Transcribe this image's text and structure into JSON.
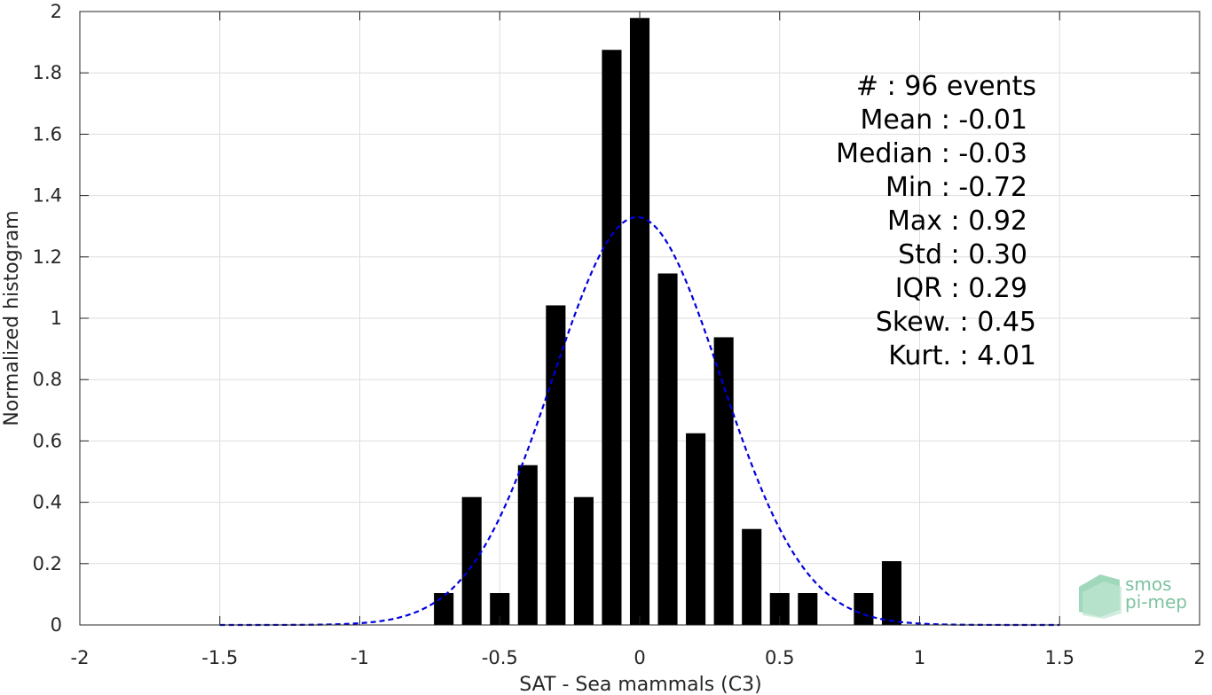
{
  "chart_data": {
    "type": "bar",
    "xlabel": "SAT - Sea mammals (C3)",
    "ylabel": "Normalized histogram",
    "xlim": [
      -2,
      2
    ],
    "ylim": [
      0,
      2
    ],
    "xticks": [
      -2,
      -1.5,
      -1,
      -0.5,
      0,
      0.5,
      1,
      1.5,
      2
    ],
    "xtick_labels": [
      "-2",
      "-1.5",
      "-1",
      "-0.5",
      "0",
      "0.5",
      "1",
      "1.5",
      "2"
    ],
    "yticks": [
      0,
      0.2,
      0.4,
      0.6,
      0.8,
      1,
      1.2,
      1.4,
      1.6,
      1.8,
      2
    ],
    "ytick_labels": [
      "0",
      "0.2",
      "0.4",
      "0.6",
      "0.8",
      "1",
      "1.2",
      "1.4",
      "1.6",
      "1.8",
      "2"
    ],
    "grid": true,
    "bin_width": 0.1,
    "bar_width": 0.07,
    "bar_color": "#000000",
    "bins": [
      {
        "x": -0.7,
        "value": 0.104
      },
      {
        "x": -0.6,
        "value": 0.417
      },
      {
        "x": -0.5,
        "value": 0.104
      },
      {
        "x": -0.4,
        "value": 0.521
      },
      {
        "x": -0.3,
        "value": 1.042
      },
      {
        "x": -0.2,
        "value": 0.417
      },
      {
        "x": -0.1,
        "value": 1.875
      },
      {
        "x": 0.0,
        "value": 1.979
      },
      {
        "x": 0.1,
        "value": 1.146
      },
      {
        "x": 0.2,
        "value": 0.625
      },
      {
        "x": 0.3,
        "value": 0.938
      },
      {
        "x": 0.4,
        "value": 0.313
      },
      {
        "x": 0.5,
        "value": 0.104
      },
      {
        "x": 0.6,
        "value": 0.104
      },
      {
        "x": 0.8,
        "value": 0.104
      },
      {
        "x": 0.9,
        "value": 0.208
      }
    ],
    "fit_curve": {
      "style": "dashed",
      "color": "#0000dd",
      "mean": -0.01,
      "std": 0.3,
      "x_range": [
        -1.5,
        1.5
      ]
    },
    "annotations": [
      "#  : 96 events",
      "Mean : -0.01",
      "Median : -0.03",
      "Min : -0.72",
      "Max : 0.92",
      "Std : 0.30",
      "IQR : 0.29",
      "Skew. : 0.45",
      "Kurt. : 4.01"
    ]
  },
  "logo": {
    "line1": "smos",
    "line2": "pi-mep",
    "color": "#7dc3a0"
  }
}
